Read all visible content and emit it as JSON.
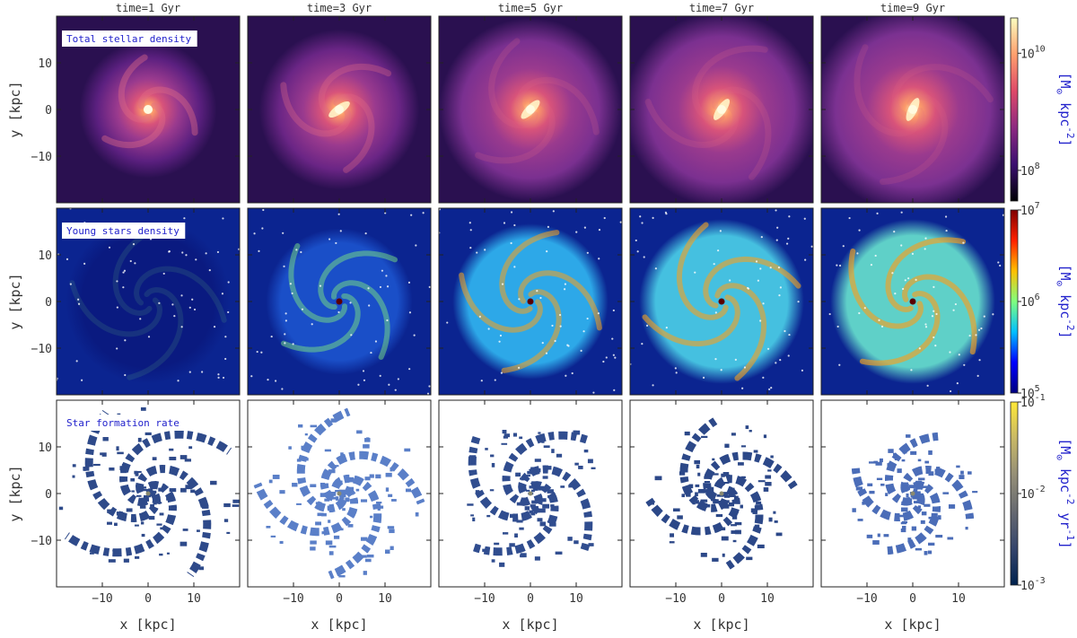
{
  "chart_data": {
    "type": "heatmap",
    "layout": "3 rows x 5 columns of face-on galaxy density maps",
    "columns": [
      "time=1 Gyr",
      "time=3 Gyr",
      "time=5 Gyr",
      "time=7 Gyr",
      "time=9 Gyr"
    ],
    "xlabel": "x [kpc]",
    "ylabel": "y [kpc]",
    "xlim": [
      -20,
      20
    ],
    "ylim": [
      -20,
      20
    ],
    "x_ticks": [
      -10,
      0,
      10
    ],
    "y_ticks": [
      10,
      0,
      -10
    ],
    "rows": [
      {
        "label": "Total stellar density",
        "colormap": "magma",
        "colorbar": {
          "scale": "log",
          "range": [
            30000000.0,
            40000000000.0
          ],
          "ticks": [
            {
              "base": "10",
              "exp": "10",
              "value": 10000000000.0
            },
            {
              "base": "10",
              "exp": "8",
              "value": 100000000.0
            }
          ],
          "unit": {
            "a": "[M",
            "sub": "⊙",
            "b": " kpc",
            "sup": "-2",
            "c": "]"
          }
        },
        "panels": [
          {
            "time_gyr": 1,
            "bar": false,
            "arm_contrast": 0.75,
            "extent_kpc": 12,
            "fill": "#5c2080"
          },
          {
            "time_gyr": 3,
            "bar": true,
            "arm_contrast": 0.6,
            "extent_kpc": 14,
            "fill": "#6a2585"
          },
          {
            "time_gyr": 5,
            "bar": true,
            "arm_contrast": 0.35,
            "extent_kpc": 16,
            "fill": "#7a3090"
          },
          {
            "time_gyr": 7,
            "bar": true,
            "arm_contrast": 0.35,
            "extent_kpc": 17,
            "fill": "#7b3090"
          },
          {
            "time_gyr": 9,
            "bar": true,
            "arm_contrast": 0.3,
            "extent_kpc": 18,
            "fill": "#7b3191"
          }
        ]
      },
      {
        "label": "Young stars density",
        "colormap": "jet",
        "colorbar": {
          "scale": "log",
          "range": [
            100000.0,
            10000000.0
          ],
          "ticks": [
            {
              "base": "10",
              "exp": "7",
              "value": 10000000.0
            },
            {
              "base": "10",
              "exp": "6",
              "value": 1000000.0
            },
            {
              "base": "10",
              "exp": "5",
              "value": 100000.0
            }
          ],
          "unit": {
            "a": "[M",
            "sub": "⊙",
            "b": " kpc",
            "sup": "-2",
            "c": "]"
          }
        },
        "panels": [
          {
            "time_gyr": 1,
            "arm_contrast": 0.15,
            "extent_kpc": 18,
            "fill": "#0a1a80"
          },
          {
            "time_gyr": 3,
            "arm_contrast": 0.6,
            "extent_kpc": 16,
            "fill": "#1a4fc8"
          },
          {
            "time_gyr": 5,
            "arm_contrast": 0.7,
            "extent_kpc": 17,
            "fill": "#2da8e8"
          },
          {
            "time_gyr": 7,
            "arm_contrast": 0.75,
            "extent_kpc": 18,
            "fill": "#45c0e0"
          },
          {
            "time_gyr": 9,
            "arm_contrast": 0.8,
            "extent_kpc": 18,
            "fill": "#5fd0c8"
          }
        ]
      },
      {
        "label": "Star formation rate",
        "colormap": "cividis",
        "colorbar": {
          "scale": "log",
          "range": [
            0.001,
            0.1
          ],
          "ticks": [
            {
              "base": "10",
              "exp": "-1",
              "value": 0.1
            },
            {
              "base": "10",
              "exp": "-2",
              "value": 0.01
            },
            {
              "base": "10",
              "exp": "-3",
              "value": 0.001
            }
          ],
          "unit": {
            "a": "[M",
            "sub": "⊙",
            "b": " kpc",
            "sup": "-2",
            "c": " yr",
            "sup2": "-1",
            "d": "]"
          }
        },
        "panels": [
          {
            "time_gyr": 1,
            "extent_kpc": 20,
            "fill": "#2e4a8a"
          },
          {
            "time_gyr": 3,
            "extent_kpc": 18,
            "fill": "#5a7fc8"
          },
          {
            "time_gyr": 5,
            "extent_kpc": 17,
            "fill": "#304d8f"
          },
          {
            "time_gyr": 7,
            "extent_kpc": 16,
            "fill": "#2c4888"
          },
          {
            "time_gyr": 9,
            "extent_kpc": 14,
            "fill": "#4b6db8"
          }
        ]
      }
    ],
    "grid": false
  }
}
